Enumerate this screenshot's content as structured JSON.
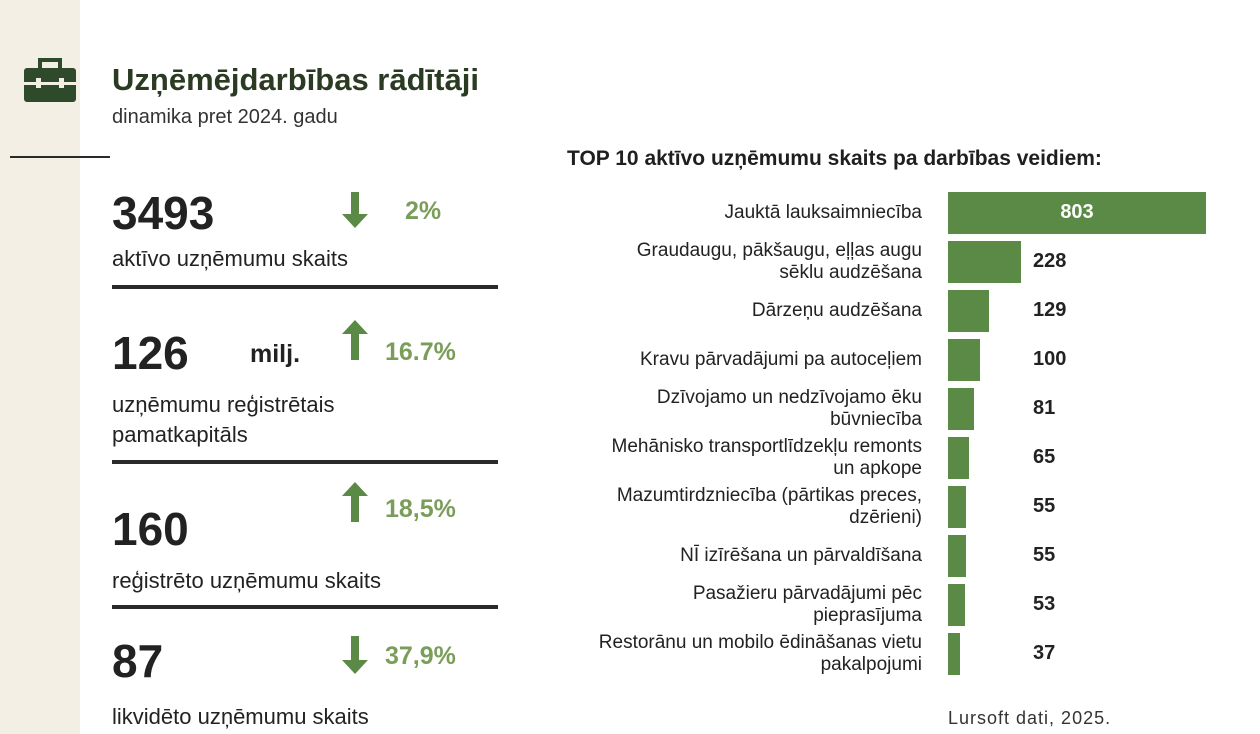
{
  "header": {
    "title": "Uzņēmējdarbības rādītāji",
    "subtitle": "dinamika pret 2024. gadu"
  },
  "kpis": [
    {
      "value": "3493",
      "change": "2%",
      "label": "aktīvo uzņēmumu skaits"
    },
    {
      "value": "126",
      "unit": "milj.",
      "change": "16.7%",
      "label": "uzņēmumu reģistrētais pamatkapitāls"
    },
    {
      "value": "160",
      "change": "18,5%",
      "label": "reģistrēto uzņēmumu skaits"
    },
    {
      "value": "87",
      "change": "37,9%",
      "label": "likvidēto uzņēmumu skaits"
    }
  ],
  "chart_data": {
    "type": "bar",
    "orientation": "horizontal",
    "title": "TOP 10 aktīvo uzņēmumu skaits pa darbības veidiem:",
    "categories": [
      "Jauktā lauksaimniecība",
      "Graudaugu, pākšaugu, eļļas augu sēklu audzēšana",
      "Dārzeņu audzēšana",
      "Kravu pārvadājumi pa autoceļiem",
      "Dzīvojamo un nedzīvojamo ēku būvniecība",
      "Mehānisko transportlīdzekļu remonts un apkope",
      "Mazumtirdzniecība (pārtikas preces, dzērieni)",
      "NĪ izīrēšana un pārvaldīšana",
      "Pasažieru pārvadājumi pēc pieprasījuma",
      "Restorānu un mobilo ēdināšanas vietu pakalpojumi"
    ],
    "values": [
      803,
      228,
      129,
      100,
      81,
      65,
      55,
      55,
      53,
      37
    ],
    "color": "#5b8a46"
  },
  "source": "Lursoft dati, 2025."
}
